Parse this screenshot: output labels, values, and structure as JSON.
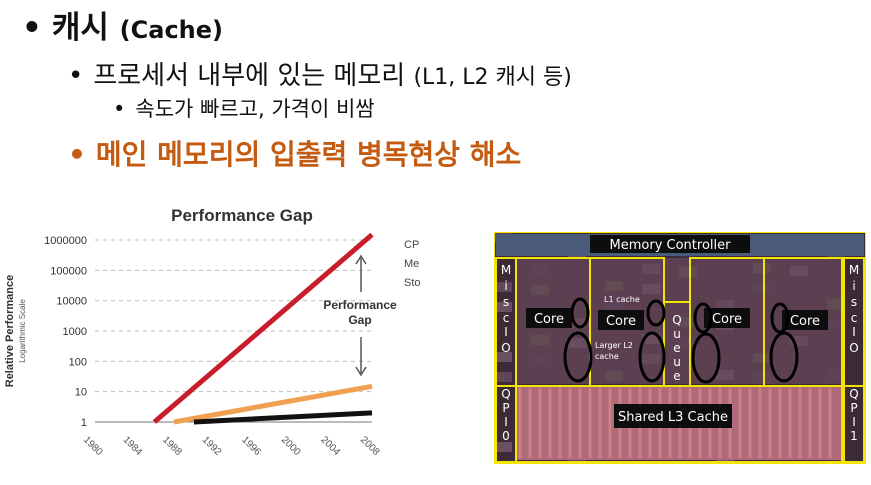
{
  "slide": {
    "bullet1": {
      "marker": "•",
      "title": "캐시",
      "title_en": "(Cache)"
    },
    "bullet2": {
      "marker": "•",
      "text": "프로세서 내부에 있는 메모리",
      "text_en": "(L1, L2 캐시 등)"
    },
    "bullet3": {
      "marker": "•",
      "text": "속도가 빠르고, 가격이 비쌈"
    },
    "bullet4": {
      "marker": "•",
      "text": "메인 메모리의 입출력 병목현상 해소"
    }
  },
  "colors": {
    "accent": "#c55a11",
    "cpu": "#c81e2b",
    "memory": "#f0a050",
    "storage": "#111111",
    "die_border": "#f2e600"
  },
  "chart_data": {
    "type": "line",
    "title": "Performance Gap",
    "ylabel": "Relative Performance",
    "ylabel_sub": "Logarithmic Scale",
    "y_scale": "log",
    "ylim": [
      1,
      1000000
    ],
    "y_ticks": [
      "1000000",
      "100000",
      "10000",
      "1000",
      "100",
      "10",
      "1"
    ],
    "x_ticks": [
      "1980",
      "1984",
      "1988",
      "1992",
      "1996",
      "2000",
      "2004",
      "2008"
    ],
    "xlim": [
      1980,
      2008
    ],
    "legend_position": "right",
    "annotation": [
      "Performance",
      "Gap"
    ],
    "series": [
      {
        "name": "CPUs",
        "color": "#c81e2b",
        "x": [
          1986,
          2008
        ],
        "y": [
          1,
          1500000
        ]
      },
      {
        "name": "Memory",
        "color": "#f0a050",
        "x": [
          1988,
          2008
        ],
        "y": [
          1,
          15
        ]
      },
      {
        "name": "Storage",
        "color": "#111111",
        "x": [
          1990,
          2008
        ],
        "y": [
          1,
          2
        ]
      }
    ]
  },
  "die": {
    "memory_controller": "Memory Controller",
    "misc_io_left": [
      "M",
      "i",
      "s",
      "c",
      "I",
      "O"
    ],
    "misc_io_right": [
      "M",
      "i",
      "s",
      "c",
      "I",
      "O"
    ],
    "qpi_left": [
      "Q",
      "P",
      "I",
      "0"
    ],
    "qpi_right": [
      "Q",
      "P",
      "I",
      "1"
    ],
    "cores": [
      "Core",
      "Core",
      "Core",
      "Core"
    ],
    "queue": [
      "Q",
      "u",
      "e",
      "u",
      "e"
    ],
    "l1_label": "L1 cache",
    "l2_label": "Larger L2 cache",
    "l3_label": "Shared L3 Cache"
  }
}
